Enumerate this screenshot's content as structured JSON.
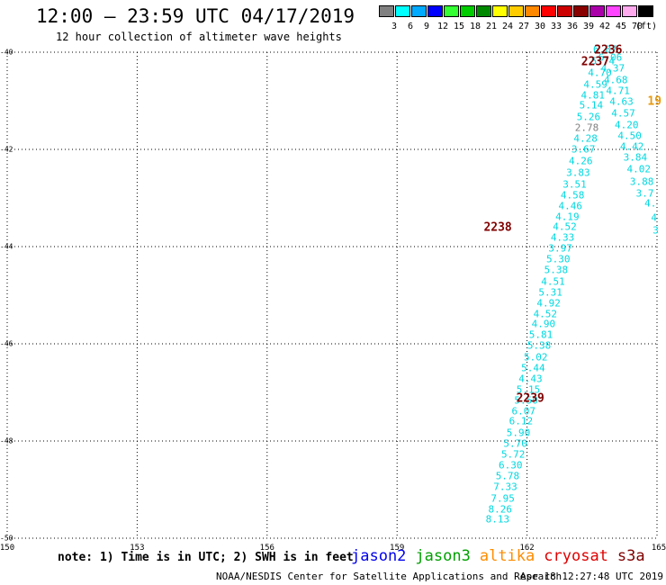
{
  "header": {
    "title": "12:00 – 23:59 UTC 04/17/2019",
    "subtitle": "12 hour collection of altimeter wave heights"
  },
  "legend": {
    "unit": "(ft)",
    "bins": [
      {
        "label": "3",
        "color": "#808080"
      },
      {
        "label": "6",
        "color": "#00ffff"
      },
      {
        "label": "9",
        "color": "#00aaff"
      },
      {
        "label": "12",
        "color": "#0000ff"
      },
      {
        "label": "15",
        "color": "#33ff33"
      },
      {
        "label": "18",
        "color": "#00cc00"
      },
      {
        "label": "21",
        "color": "#008800"
      },
      {
        "label": "24",
        "color": "#ffff00"
      },
      {
        "label": "27",
        "color": "#ffcc00"
      },
      {
        "label": "30",
        "color": "#ff8800"
      },
      {
        "label": "33",
        "color": "#ff0000"
      },
      {
        "label": "36",
        "color": "#cc0000"
      },
      {
        "label": "39",
        "color": "#880000"
      },
      {
        "label": "42",
        "color": "#aa00aa"
      },
      {
        "label": "45",
        "color": "#ff44ff"
      },
      {
        "label": "70",
        "color": "#ffaaee"
      },
      {
        "label": "",
        "color": "#000000"
      }
    ]
  },
  "map": {
    "lat_ticks": [
      "-40",
      "-42",
      "-44",
      "-46",
      "-48",
      "-50"
    ],
    "lon_ticks": [
      "150",
      "153",
      "156",
      "159",
      "162",
      "165"
    ],
    "lon_range": [
      150,
      165
    ],
    "lat_range": [
      -40,
      -50
    ]
  },
  "tracks": {
    "value_color": "#00d8e0",
    "pass_color": "#800000",
    "passes": [
      {
        "label": "2236",
        "lon": 163.55,
        "lat": -39.96
      },
      {
        "label": "2237",
        "lon": 163.25,
        "lat": -40.2
      },
      {
        "label": "2238",
        "lon": 161.0,
        "lat": -43.62
      },
      {
        "label": "2239",
        "lon": 161.75,
        "lat": -47.13
      }
    ],
    "partial_label": {
      "text": "19",
      "lon": 164.78,
      "lat": -41.02,
      "color": "#e89a10"
    },
    "track_a": [
      {
        "v": "6.87",
        "lon": 163.8,
        "lat": -39.94
      },
      {
        "v": "5.74",
        "lon": 163.75,
        "lat": -40.18
      },
      {
        "v": "4.70",
        "lon": 163.68,
        "lat": -40.42
      },
      {
        "v": "4.59",
        "lon": 163.58,
        "lat": -40.66
      },
      {
        "v": "4.81",
        "lon": 163.52,
        "lat": -40.88
      },
      {
        "v": "5.14",
        "lon": 163.48,
        "lat": -41.1
      },
      {
        "v": "5.26",
        "lon": 163.42,
        "lat": -41.34
      },
      {
        "v": "2.78",
        "lon": 163.38,
        "lat": -41.56
      },
      {
        "v": "4.28",
        "lon": 163.35,
        "lat": -41.78
      },
      {
        "v": "3.67",
        "lon": 163.3,
        "lat": -42.0
      },
      {
        "v": "4.26",
        "lon": 163.24,
        "lat": -42.24
      },
      {
        "v": "3.83",
        "lon": 163.18,
        "lat": -42.48
      },
      {
        "v": "3.51",
        "lon": 163.1,
        "lat": -42.72
      },
      {
        "v": "4.58",
        "lon": 163.05,
        "lat": -42.94
      },
      {
        "v": "4.46",
        "lon": 163.0,
        "lat": -43.16
      },
      {
        "v": "4.19",
        "lon": 162.93,
        "lat": -43.38
      },
      {
        "v": "4.52",
        "lon": 162.87,
        "lat": -43.6
      },
      {
        "v": "4.33",
        "lon": 162.82,
        "lat": -43.82
      },
      {
        "v": "3.97",
        "lon": 162.77,
        "lat": -44.04
      },
      {
        "v": "5.30",
        "lon": 162.72,
        "lat": -44.26
      },
      {
        "v": "5.38",
        "lon": 162.67,
        "lat": -44.48
      },
      {
        "v": "4.51",
        "lon": 162.6,
        "lat": -44.72
      },
      {
        "v": "5.31",
        "lon": 162.54,
        "lat": -44.94
      },
      {
        "v": "4.92",
        "lon": 162.5,
        "lat": -45.16
      },
      {
        "v": "4.52",
        "lon": 162.42,
        "lat": -45.38
      },
      {
        "v": "4.90",
        "lon": 162.38,
        "lat": -45.6
      },
      {
        "v": "5.81",
        "lon": 162.32,
        "lat": -45.82
      },
      {
        "v": "5.38",
        "lon": 162.28,
        "lat": -46.04
      },
      {
        "v": "5.02",
        "lon": 162.2,
        "lat": -46.28
      },
      {
        "v": "5.44",
        "lon": 162.14,
        "lat": -46.5
      },
      {
        "v": "4.43",
        "lon": 162.08,
        "lat": -46.72
      },
      {
        "v": "5.15",
        "lon": 162.03,
        "lat": -46.94
      },
      {
        "v": "5.50",
        "lon": 161.98,
        "lat": -47.16
      },
      {
        "v": "6.07",
        "lon": 161.92,
        "lat": -47.38
      },
      {
        "v": "6.12",
        "lon": 161.86,
        "lat": -47.6
      },
      {
        "v": "5.90",
        "lon": 161.8,
        "lat": -47.84
      },
      {
        "v": "5.70",
        "lon": 161.73,
        "lat": -48.06
      },
      {
        "v": "5.72",
        "lon": 161.68,
        "lat": -48.28
      },
      {
        "v": "6.30",
        "lon": 161.62,
        "lat": -48.5
      },
      {
        "v": "5.78",
        "lon": 161.55,
        "lat": -48.72
      },
      {
        "v": "7.33",
        "lon": 161.5,
        "lat": -48.94
      },
      {
        "v": "7.95",
        "lon": 161.44,
        "lat": -49.18
      },
      {
        "v": "8.26",
        "lon": 161.38,
        "lat": -49.4
      },
      {
        "v": "8.13",
        "lon": 161.32,
        "lat": -49.62
      }
    ],
    "track_b": [
      {
        "v": "6.06",
        "lon": 163.92,
        "lat": -40.12
      },
      {
        "v": "4.37",
        "lon": 163.98,
        "lat": -40.34
      },
      {
        "v": "4.68",
        "lon": 164.05,
        "lat": -40.58
      },
      {
        "v": "4.71",
        "lon": 164.1,
        "lat": -40.8
      },
      {
        "v": "4.63",
        "lon": 164.18,
        "lat": -41.02
      },
      {
        "v": "4.57",
        "lon": 164.22,
        "lat": -41.26
      },
      {
        "v": "4.20",
        "lon": 164.3,
        "lat": -41.5
      },
      {
        "v": "4.50",
        "lon": 164.37,
        "lat": -41.72
      },
      {
        "v": "4.42",
        "lon": 164.42,
        "lat": -41.94
      },
      {
        "v": "3.84",
        "lon": 164.5,
        "lat": -42.16
      },
      {
        "v": "4.02",
        "lon": 164.58,
        "lat": -42.4
      },
      {
        "v": "3.88",
        "lon": 164.65,
        "lat": -42.66
      },
      {
        "v": "3.7",
        "lon": 164.72,
        "lat": -42.9
      },
      {
        "v": "4.",
        "lon": 164.85,
        "lat": -43.12
      },
      {
        "v": "4",
        "lon": 164.93,
        "lat": -43.4
      },
      {
        "v": "3",
        "lon": 164.97,
        "lat": -43.66
      }
    ]
  },
  "footer": {
    "note": "note: 1) Time is in UTC; 2) SWH is in feet",
    "satellites": [
      {
        "name": "jason2",
        "color": "#0000ee"
      },
      {
        "name": "jason3",
        "color": "#00a000"
      },
      {
        "name": "altika",
        "color": "#ff8c00"
      },
      {
        "name": "cryosat",
        "color": "#e00000"
      },
      {
        "name": "s3a",
        "color": "#800000"
      }
    ],
    "credit": "NOAA/NESDIS Center for Satellite Applications and Research",
    "timestamp": "Apr 18 12:27:48 UTC 2019"
  }
}
